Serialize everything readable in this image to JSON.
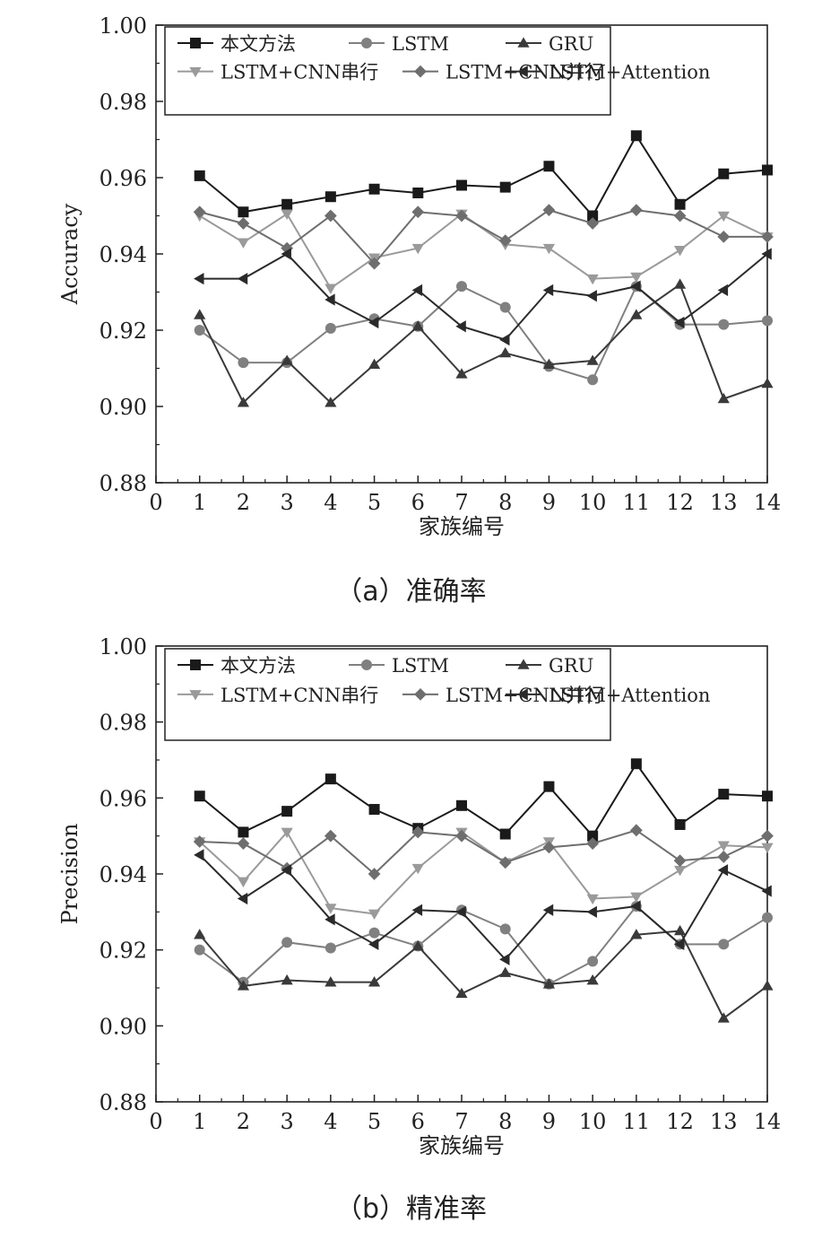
{
  "chart_data": [
    {
      "type": "line",
      "caption": "（a）准确率",
      "xlabel": "家族编号",
      "ylabel": "Accuracy",
      "xlim": [
        0,
        14
      ],
      "ylim": [
        0.88,
        1.0
      ],
      "xticks": [
        "0",
        "1",
        "2",
        "3",
        "4",
        "5",
        "6",
        "7",
        "8",
        "9",
        "10",
        "11",
        "12",
        "13",
        "14"
      ],
      "yticks": [
        "0.88",
        "0.90",
        "0.92",
        "0.94",
        "0.96",
        "0.98",
        "1.00"
      ],
      "legend_position": "top",
      "x": [
        1,
        2,
        3,
        4,
        5,
        6,
        7,
        8,
        9,
        10,
        11,
        12,
        13,
        14
      ],
      "series": [
        {
          "name": "本文方法",
          "marker": "square",
          "color": "#1a1a1a",
          "values": [
            0.9605,
            0.951,
            0.953,
            0.955,
            0.957,
            0.956,
            0.958,
            0.9575,
            0.963,
            0.95,
            0.971,
            0.953,
            0.961,
            0.962
          ]
        },
        {
          "name": "LSTM",
          "marker": "circle",
          "color": "#808080",
          "values": [
            0.92,
            0.9115,
            0.9115,
            0.9205,
            0.923,
            0.921,
            0.9315,
            0.926,
            0.9105,
            0.907,
            0.9315,
            0.9215,
            0.9215,
            0.9225
          ]
        },
        {
          "name": "GRU",
          "marker": "triangle-up",
          "color": "#3a3a3a",
          "values": [
            0.924,
            0.901,
            0.912,
            0.901,
            0.911,
            0.921,
            0.9085,
            0.914,
            0.911,
            0.912,
            0.924,
            0.932,
            0.902,
            0.906
          ]
        },
        {
          "name": "LSTM+CNN串行",
          "marker": "triangle-down",
          "color": "#9a9a9a",
          "values": [
            0.95,
            0.943,
            0.9505,
            0.931,
            0.939,
            0.9415,
            0.9505,
            0.9425,
            0.9415,
            0.9335,
            0.934,
            0.941,
            0.95,
            0.9445
          ]
        },
        {
          "name": "LSTM+CNN并行",
          "marker": "diamond",
          "color": "#6e6e6e",
          "values": [
            0.951,
            0.948,
            0.9415,
            0.95,
            0.9375,
            0.951,
            0.95,
            0.9435,
            0.9515,
            0.948,
            0.9515,
            0.95,
            0.9445,
            0.9445
          ]
        },
        {
          "name": "LSTM+Attention",
          "marker": "triangle-left",
          "color": "#2a2a2a",
          "values": [
            0.9335,
            0.9335,
            0.94,
            0.928,
            0.922,
            0.9305,
            0.921,
            0.9175,
            0.9305,
            0.929,
            0.9315,
            0.922,
            0.9305,
            0.94
          ]
        }
      ]
    },
    {
      "type": "line",
      "caption": "（b）精准率",
      "xlabel": "家族编号",
      "ylabel": "Precision",
      "xlim": [
        0,
        14
      ],
      "ylim": [
        0.88,
        1.0
      ],
      "xticks": [
        "0",
        "1",
        "2",
        "3",
        "4",
        "5",
        "6",
        "7",
        "8",
        "9",
        "10",
        "11",
        "12",
        "13",
        "14"
      ],
      "yticks": [
        "0.88",
        "0.90",
        "0.92",
        "0.94",
        "0.96",
        "0.98",
        "1.00"
      ],
      "legend_position": "top",
      "x": [
        1,
        2,
        3,
        4,
        5,
        6,
        7,
        8,
        9,
        10,
        11,
        12,
        13,
        14
      ],
      "series": [
        {
          "name": "本文方法",
          "marker": "square",
          "color": "#1a1a1a",
          "values": [
            0.9605,
            0.951,
            0.9565,
            0.965,
            0.957,
            0.952,
            0.958,
            0.9505,
            0.963,
            0.95,
            0.969,
            0.953,
            0.961,
            0.9605
          ]
        },
        {
          "name": "LSTM",
          "marker": "circle",
          "color": "#808080",
          "values": [
            0.92,
            0.9115,
            0.922,
            0.9205,
            0.9245,
            0.921,
            0.9305,
            0.9255,
            0.911,
            0.917,
            0.9315,
            0.9215,
            0.9215,
            0.9285
          ]
        },
        {
          "name": "GRU",
          "marker": "triangle-up",
          "color": "#3a3a3a",
          "values": [
            0.924,
            0.9105,
            0.912,
            0.9115,
            0.9115,
            0.921,
            0.9085,
            0.914,
            0.911,
            0.912,
            0.924,
            0.925,
            0.902,
            0.9105
          ]
        },
        {
          "name": "LSTM+CNN串行",
          "marker": "triangle-down",
          "color": "#9a9a9a",
          "values": [
            0.9485,
            0.938,
            0.951,
            0.931,
            0.9295,
            0.9415,
            0.951,
            0.943,
            0.9485,
            0.9335,
            0.934,
            0.941,
            0.9475,
            0.947
          ]
        },
        {
          "name": "LSTM+CNN并行",
          "marker": "diamond",
          "color": "#6e6e6e",
          "values": [
            0.9485,
            0.948,
            0.9415,
            0.95,
            0.94,
            0.951,
            0.95,
            0.943,
            0.947,
            0.948,
            0.9515,
            0.9435,
            0.9445,
            0.95
          ]
        },
        {
          "name": "LSTM+Attention",
          "marker": "triangle-left",
          "color": "#2a2a2a",
          "values": [
            0.945,
            0.9335,
            0.941,
            0.928,
            0.9215,
            0.9305,
            0.93,
            0.9175,
            0.9305,
            0.93,
            0.9315,
            0.9215,
            0.941,
            0.9355
          ]
        }
      ]
    }
  ]
}
